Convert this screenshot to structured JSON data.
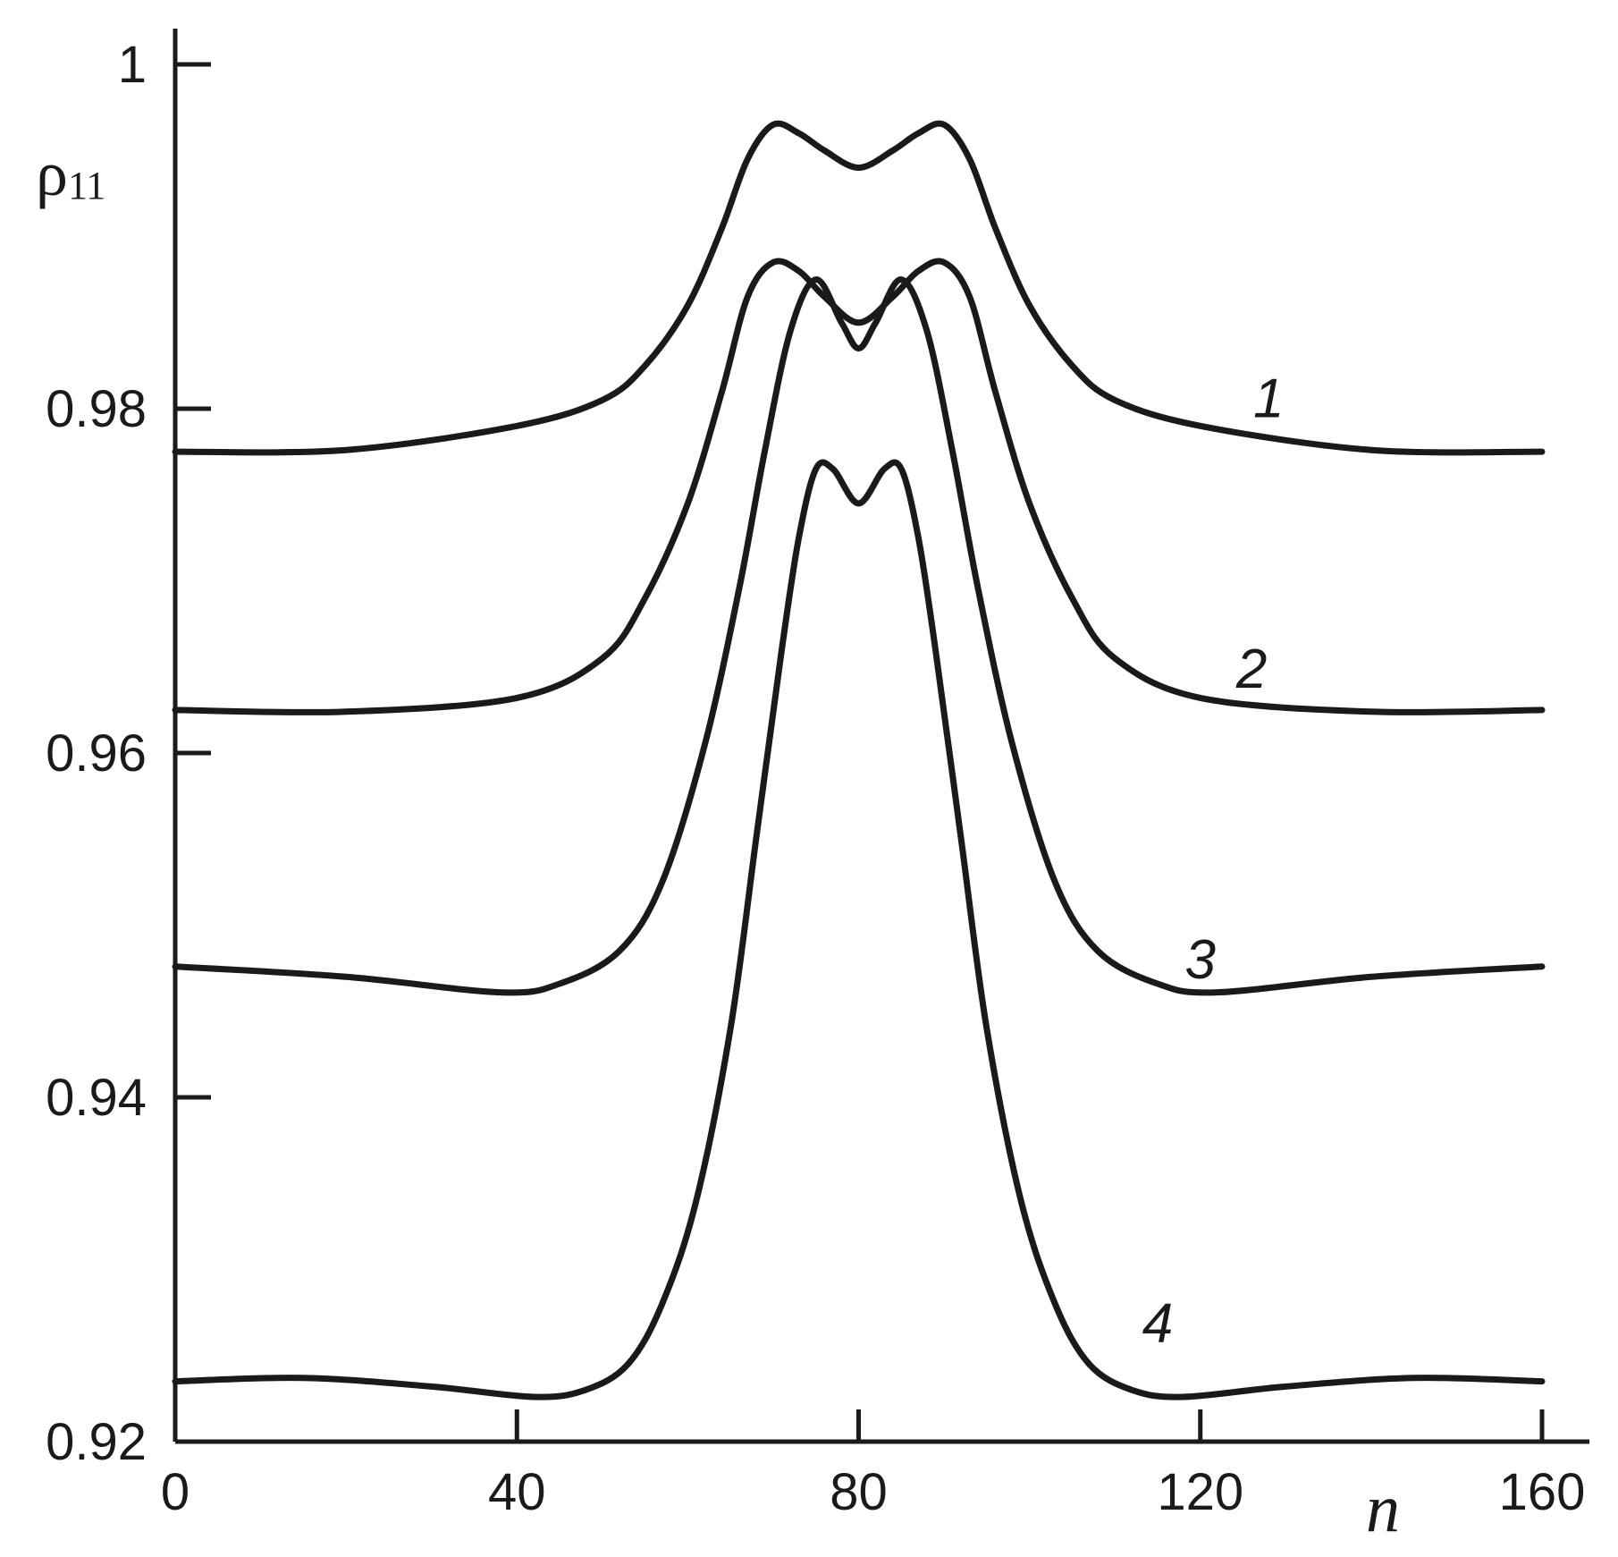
{
  "chart_data": {
    "type": "line",
    "xlabel": "n",
    "ylabel": "ρ",
    "ylabel_subscript": "11",
    "xlim": [
      0,
      160
    ],
    "ylim": [
      0.92,
      1.0
    ],
    "xticks": [
      0,
      40,
      80,
      120,
      160
    ],
    "xtick_labels": [
      "0",
      "40",
      "80",
      "120",
      "160"
    ],
    "yticks": [
      0.92,
      0.94,
      0.96,
      0.98,
      1.0
    ],
    "ytick_labels": [
      "0.92",
      "0.94",
      "0.96",
      "0.98",
      "1"
    ],
    "grid": false,
    "legend": "none",
    "line_color": "#1a1a1a",
    "series": [
      {
        "label": "1",
        "label_at": [
          128,
          0.9795
        ],
        "x": [
          0,
          20,
          40,
          50,
          55,
          60,
          64,
          67,
          70,
          73,
          76,
          80,
          84,
          87,
          90,
          93,
          96,
          100,
          105,
          110,
          120,
          140,
          160
        ],
        "y": [
          0.9775,
          0.9776,
          0.979,
          0.9805,
          0.9825,
          0.986,
          0.9905,
          0.9945,
          0.9965,
          0.996,
          0.995,
          0.994,
          0.995,
          0.996,
          0.9965,
          0.9945,
          0.9905,
          0.986,
          0.9825,
          0.9805,
          0.979,
          0.9776,
          0.9775
        ]
      },
      {
        "label": "2",
        "label_at": [
          126,
          0.9638
        ],
        "x": [
          0,
          20,
          40,
          50,
          55,
          60,
          64,
          67,
          70,
          73,
          76,
          80,
          84,
          87,
          90,
          93,
          96,
          100,
          105,
          110,
          120,
          140,
          160
        ],
        "y": [
          0.9625,
          0.9624,
          0.9632,
          0.9655,
          0.969,
          0.9745,
          0.981,
          0.9865,
          0.9885,
          0.988,
          0.9865,
          0.985,
          0.9865,
          0.988,
          0.9885,
          0.9865,
          0.981,
          0.9745,
          0.969,
          0.9655,
          0.9632,
          0.9624,
          0.9625
        ]
      },
      {
        "label": "3",
        "label_at": [
          120,
          0.9469
        ],
        "x": [
          0,
          20,
          38,
          45,
          52,
          57,
          62,
          66,
          69,
          72,
          75,
          78,
          80,
          82,
          85,
          88,
          91,
          94,
          98,
          103,
          108,
          115,
          122,
          140,
          160
        ],
        "y": [
          0.9476,
          0.947,
          0.9461,
          0.9466,
          0.9485,
          0.9525,
          0.9605,
          0.9695,
          0.9775,
          0.9845,
          0.9875,
          0.985,
          0.9835,
          0.985,
          0.9875,
          0.9845,
          0.9775,
          0.9695,
          0.9605,
          0.9525,
          0.9485,
          0.9466,
          0.9461,
          0.947,
          0.9476
        ]
      },
      {
        "label": "4",
        "label_at": [
          115,
          0.9258
        ],
        "x": [
          0,
          15,
          30,
          42,
          48,
          53,
          57,
          61,
          65,
          68,
          71,
          73,
          75,
          77,
          80,
          83,
          85,
          87,
          89,
          92,
          95,
          99,
          103,
          107,
          112,
          118,
          130,
          145,
          160
        ],
        "y": [
          0.9235,
          0.9237,
          0.9232,
          0.9226,
          0.923,
          0.9245,
          0.928,
          0.934,
          0.944,
          0.955,
          0.966,
          0.9725,
          0.9765,
          0.9765,
          0.9745,
          0.9765,
          0.9765,
          0.9725,
          0.966,
          0.955,
          0.944,
          0.934,
          0.928,
          0.9245,
          0.923,
          0.9226,
          0.9232,
          0.9237,
          0.9235
        ]
      }
    ]
  }
}
